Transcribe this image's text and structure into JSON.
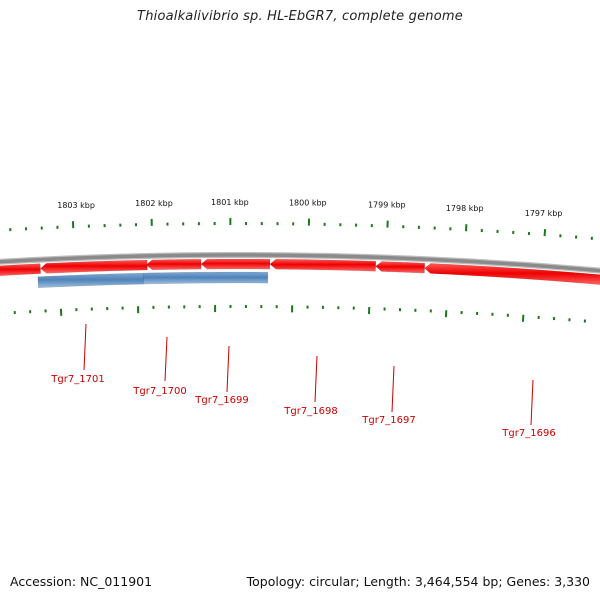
{
  "title": "Thioalkalivibrio sp. HL-EbGR7, complete genome",
  "footer": {
    "accession": "Accession: NC_011901",
    "summary": "Topology: circular; Length: 3,464,554 bp; Genes: 3,330"
  },
  "colors": {
    "forward_gene": "#4f82b8",
    "reverse_gene": "#ee1010",
    "backbone": "#8a8a8a",
    "tick": "#1a7a1a",
    "label": "#cc0000"
  },
  "scale": {
    "tick_labels": [
      "1803 kbp",
      "1802 kbp",
      "1801 kbp",
      "1800 kbp",
      "1799 kbp",
      "1798 kbp",
      "1797 kbp"
    ]
  },
  "genes": [
    {
      "label": "Tgr7_1701",
      "strand": "forward"
    },
    {
      "label": "Tgr7_1700",
      "strand": "forward"
    },
    {
      "label": "Tgr7_1699",
      "strand": "reverse"
    },
    {
      "label": "Tgr7_1698",
      "strand": "reverse"
    },
    {
      "label": "Tgr7_1697",
      "strand": "reverse"
    },
    {
      "label": "Tgr7_1696",
      "strand": "reverse"
    }
  ]
}
